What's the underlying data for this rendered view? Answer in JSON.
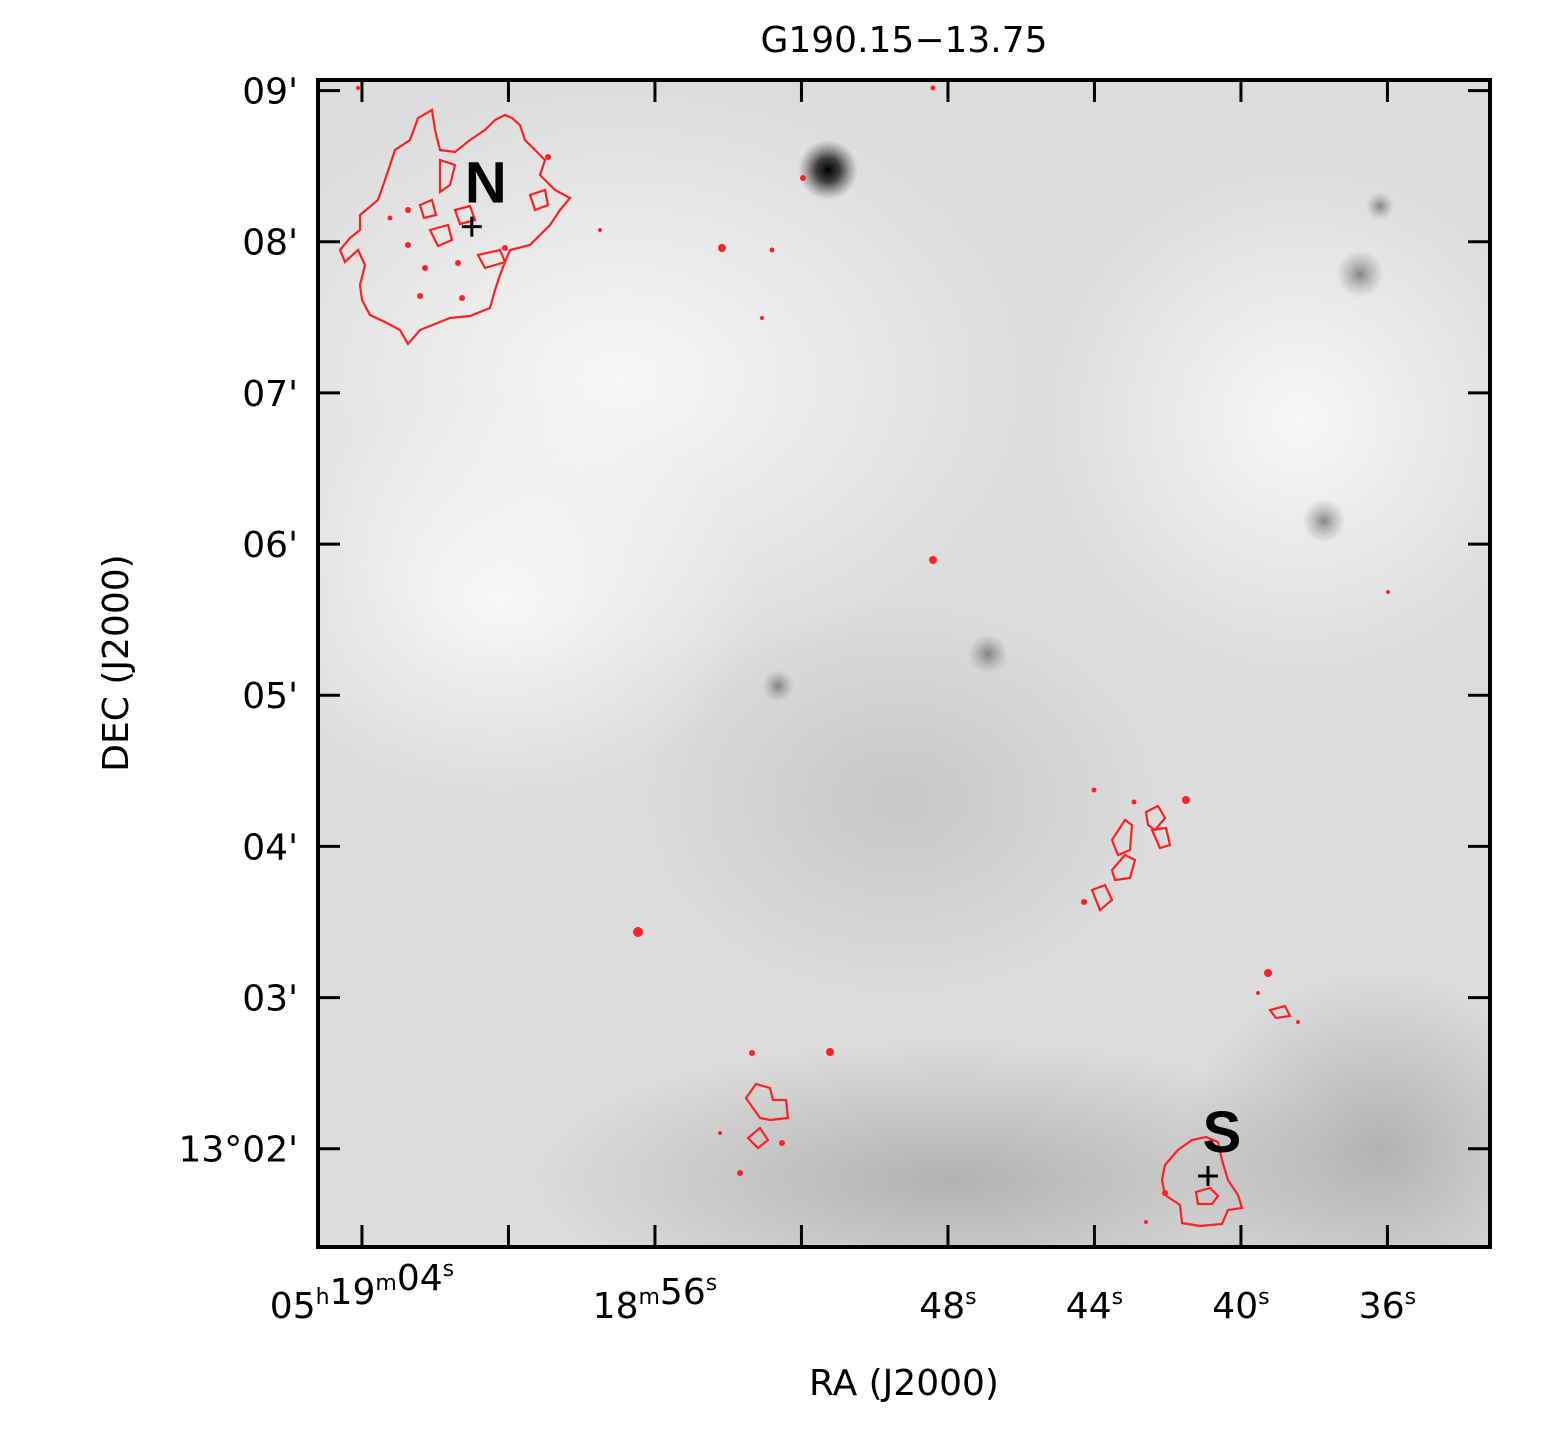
{
  "chart_data": {
    "type": "image",
    "title": "G190.15−13.75",
    "xlabel": "RA (J2000)",
    "ylabel": "DEC (J2000)",
    "x_unit": "seconds of RA offset from 05h18m00s",
    "y_unit": "arcmin of DEC offset from +13°00'",
    "xlim": [
      65.2,
      33.2
    ],
    "ylim": [
      1.35,
      9.07
    ],
    "x_ticks": [
      {
        "value": 64,
        "label": "05h19m04s"
      },
      {
        "value": 60,
        "label": ""
      },
      {
        "value": 56,
        "label": "18m56s"
      },
      {
        "value": 52,
        "label": ""
      },
      {
        "value": 48,
        "label": "48s"
      },
      {
        "value": 44,
        "label": "44s"
      },
      {
        "value": 40,
        "label": "40s"
      },
      {
        "value": 36,
        "label": "36s"
      }
    ],
    "y_ticks": [
      {
        "value": 9,
        "label": "09'"
      },
      {
        "value": 8,
        "label": "08'"
      },
      {
        "value": 7,
        "label": "07'"
      },
      {
        "value": 6,
        "label": "06'"
      },
      {
        "value": 5,
        "label": "05'"
      },
      {
        "value": 4,
        "label": "04'"
      },
      {
        "value": 3,
        "label": "03'"
      },
      {
        "value": 2,
        "label": "13°02'"
      }
    ],
    "markers": [
      {
        "label": "N",
        "x": 61.0,
        "y": 8.1
      },
      {
        "label": "S",
        "x": 40.9,
        "y": 1.82
      }
    ],
    "contour_color": "#ff2020",
    "background": "grayscale"
  }
}
